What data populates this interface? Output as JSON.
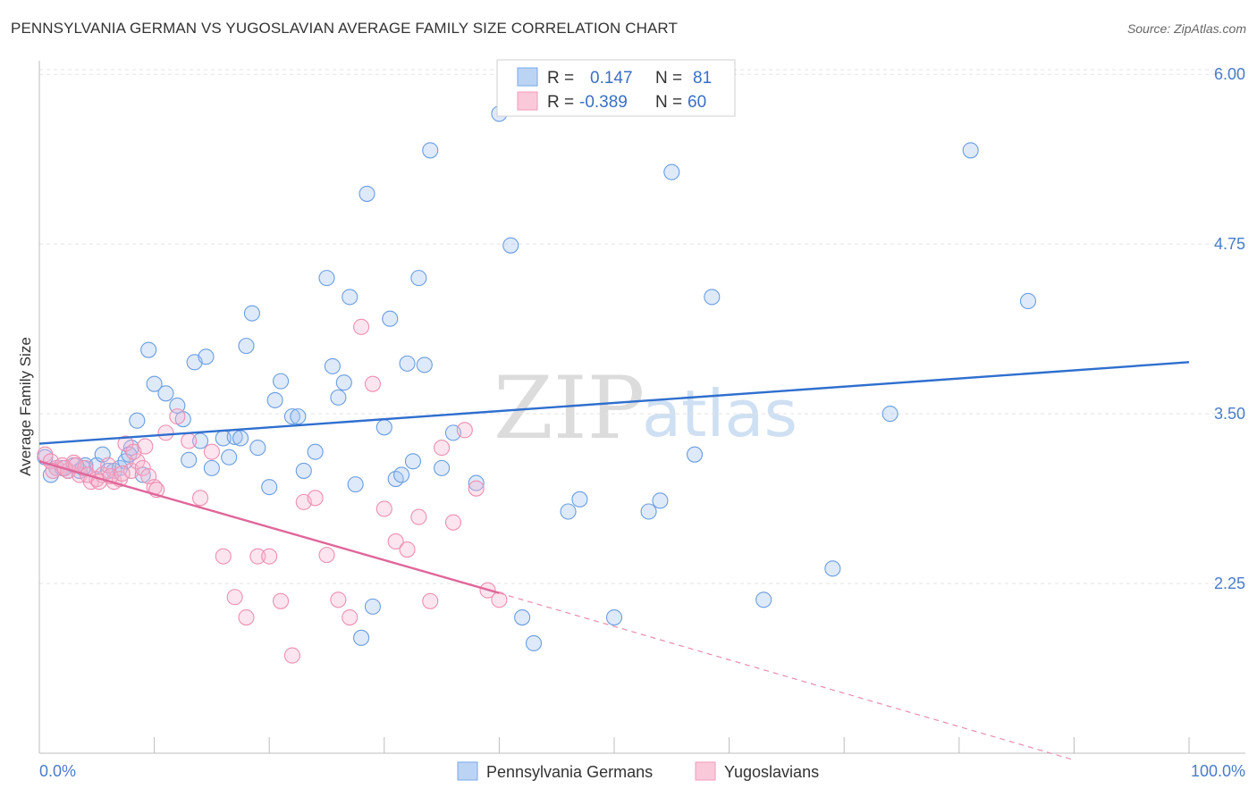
{
  "title": "PENNSYLVANIA GERMAN VS YUGOSLAVIAN AVERAGE FAMILY SIZE CORRELATION CHART",
  "source": "Source: ZipAtlas.com",
  "watermark": {
    "zip": "ZIP",
    "atlas": "atlas"
  },
  "chart_data": {
    "type": "scatter",
    "xlabel": "",
    "ylabel": "Average Family Size",
    "xlim": [
      0,
      100
    ],
    "ylim": [
      1.0,
      6.1
    ],
    "x_tick_labels": {
      "min": "0.0%",
      "max": "100.0%"
    },
    "y_ticks": [
      2.25,
      3.5,
      4.75,
      6.0
    ],
    "y_tick_labels": [
      "2.25",
      "3.50",
      "4.75",
      "6.00"
    ],
    "grid": true,
    "legend_stats": [
      {
        "r_label": "R =",
        "r": "0.147",
        "n_label": "N =",
        "n": "81",
        "color": "#7aa7e8"
      },
      {
        "r_label": "R =",
        "r": "-0.389",
        "n_label": "N =",
        "n": "60",
        "color": "#f19ab9"
      }
    ],
    "series": [
      {
        "name": "Pennsylvania Germans",
        "color": "#6a9de0",
        "trend": {
          "x0": 0,
          "y0": 3.28,
          "x1": 100,
          "y1": 3.88
        },
        "points": [
          [
            0.5,
            3.18
          ],
          [
            1.0,
            3.05
          ],
          [
            1.5,
            3.1
          ],
          [
            2.0,
            3.1
          ],
          [
            2.5,
            3.08
          ],
          [
            3.0,
            3.12
          ],
          [
            3.5,
            3.08
          ],
          [
            4.0,
            3.12
          ],
          [
            5.0,
            3.12
          ],
          [
            5.5,
            3.2
          ],
          [
            6.0,
            3.08
          ],
          [
            6.5,
            3.08
          ],
          [
            7.0,
            3.1
          ],
          [
            7.5,
            3.15
          ],
          [
            8.0,
            3.25
          ],
          [
            8.5,
            3.45
          ],
          [
            9.0,
            3.05
          ],
          [
            9.5,
            3.97
          ],
          [
            10.0,
            3.72
          ],
          [
            11.0,
            3.65
          ],
          [
            12.0,
            3.56
          ],
          [
            12.5,
            3.46
          ],
          [
            13.0,
            3.16
          ],
          [
            13.5,
            3.88
          ],
          [
            14.0,
            3.3
          ],
          [
            14.5,
            3.92
          ],
          [
            15.0,
            3.1
          ],
          [
            16.0,
            3.32
          ],
          [
            16.5,
            3.18
          ],
          [
            17.0,
            3.33
          ],
          [
            17.5,
            3.32
          ],
          [
            18.0,
            4.0
          ],
          [
            18.5,
            4.24
          ],
          [
            19.0,
            3.25
          ],
          [
            20.0,
            2.96
          ],
          [
            20.5,
            3.6
          ],
          [
            21.0,
            3.74
          ],
          [
            22.0,
            3.48
          ],
          [
            22.5,
            3.48
          ],
          [
            23.0,
            3.08
          ],
          [
            24.0,
            3.22
          ],
          [
            25.0,
            4.5
          ],
          [
            25.5,
            3.85
          ],
          [
            26.0,
            3.62
          ],
          [
            26.5,
            3.73
          ],
          [
            27.0,
            4.36
          ],
          [
            27.5,
            2.98
          ],
          [
            28.0,
            1.85
          ],
          [
            28.5,
            5.12
          ],
          [
            29.0,
            2.08
          ],
          [
            30.0,
            3.4
          ],
          [
            30.5,
            4.2
          ],
          [
            31.0,
            3.02
          ],
          [
            31.5,
            3.05
          ],
          [
            32.0,
            3.87
          ],
          [
            32.5,
            3.15
          ],
          [
            33.0,
            4.5
          ],
          [
            33.5,
            3.86
          ],
          [
            34.0,
            5.44
          ],
          [
            35.0,
            3.1
          ],
          [
            36.0,
            3.36
          ],
          [
            38.0,
            2.99
          ],
          [
            40.0,
            5.71
          ],
          [
            41.0,
            4.74
          ],
          [
            42.0,
            2.0
          ],
          [
            43.0,
            1.81
          ],
          [
            47.0,
            2.87
          ],
          [
            50.0,
            2.0
          ],
          [
            53.0,
            2.78
          ],
          [
            54.0,
            2.86
          ],
          [
            55.0,
            5.28
          ],
          [
            57.0,
            3.2
          ],
          [
            58.5,
            4.36
          ],
          [
            63.0,
            2.13
          ],
          [
            69.0,
            2.36
          ],
          [
            74.0,
            3.5
          ],
          [
            81.0,
            5.44
          ],
          [
            86.0,
            4.33
          ],
          [
            46.0,
            2.78
          ],
          [
            7.8,
            3.2
          ],
          [
            3.8,
            3.1
          ]
        ]
      },
      {
        "name": "Yugoslavians",
        "color": "#ee8fb1",
        "trend": {
          "x0": 0,
          "y0": 3.15,
          "x1": 40,
          "y1": 2.18
        },
        "trend_dashed": {
          "x0": 40,
          "y0": 2.18,
          "x1": 90,
          "y1": 0.95
        },
        "points": [
          [
            0.5,
            3.2
          ],
          [
            1.0,
            3.15
          ],
          [
            1.5,
            3.1
          ],
          [
            2.0,
            3.12
          ],
          [
            2.5,
            3.08
          ],
          [
            3.0,
            3.14
          ],
          [
            3.5,
            3.05
          ],
          [
            4.0,
            3.1
          ],
          [
            4.5,
            3.0
          ],
          [
            5.0,
            3.02
          ],
          [
            5.5,
            3.05
          ],
          [
            6.0,
            3.12
          ],
          [
            6.5,
            3.0
          ],
          [
            7.0,
            3.02
          ],
          [
            7.5,
            3.28
          ],
          [
            8.0,
            3.08
          ],
          [
            8.5,
            3.15
          ],
          [
            9.0,
            3.1
          ],
          [
            9.5,
            3.04
          ],
          [
            10.0,
            2.96
          ],
          [
            11.0,
            3.36
          ],
          [
            12.0,
            3.48
          ],
          [
            13.0,
            3.3
          ],
          [
            14.0,
            2.88
          ],
          [
            15.0,
            3.22
          ],
          [
            16.0,
            2.45
          ],
          [
            17.0,
            2.15
          ],
          [
            18.0,
            2.0
          ],
          [
            19.0,
            2.45
          ],
          [
            20.0,
            2.45
          ],
          [
            21.0,
            2.12
          ],
          [
            22.0,
            1.72
          ],
          [
            23.0,
            2.85
          ],
          [
            24.0,
            2.88
          ],
          [
            25.0,
            2.46
          ],
          [
            26.0,
            2.13
          ],
          [
            27.0,
            2.0
          ],
          [
            28.0,
            4.14
          ],
          [
            29.0,
            3.72
          ],
          [
            30.0,
            2.8
          ],
          [
            31.0,
            2.56
          ],
          [
            32.0,
            2.5
          ],
          [
            33.0,
            2.74
          ],
          [
            34.0,
            2.12
          ],
          [
            35.0,
            3.25
          ],
          [
            36.0,
            2.7
          ],
          [
            37.0,
            3.38
          ],
          [
            38.0,
            2.95
          ],
          [
            39.0,
            2.2
          ],
          [
            40.0,
            2.13
          ],
          [
            1.2,
            3.08
          ],
          [
            2.2,
            3.1
          ],
          [
            3.2,
            3.12
          ],
          [
            4.2,
            3.05
          ],
          [
            5.2,
            3.0
          ],
          [
            6.2,
            3.04
          ],
          [
            7.2,
            3.06
          ],
          [
            8.2,
            3.22
          ],
          [
            9.2,
            3.26
          ],
          [
            10.2,
            2.94
          ]
        ]
      }
    ]
  }
}
